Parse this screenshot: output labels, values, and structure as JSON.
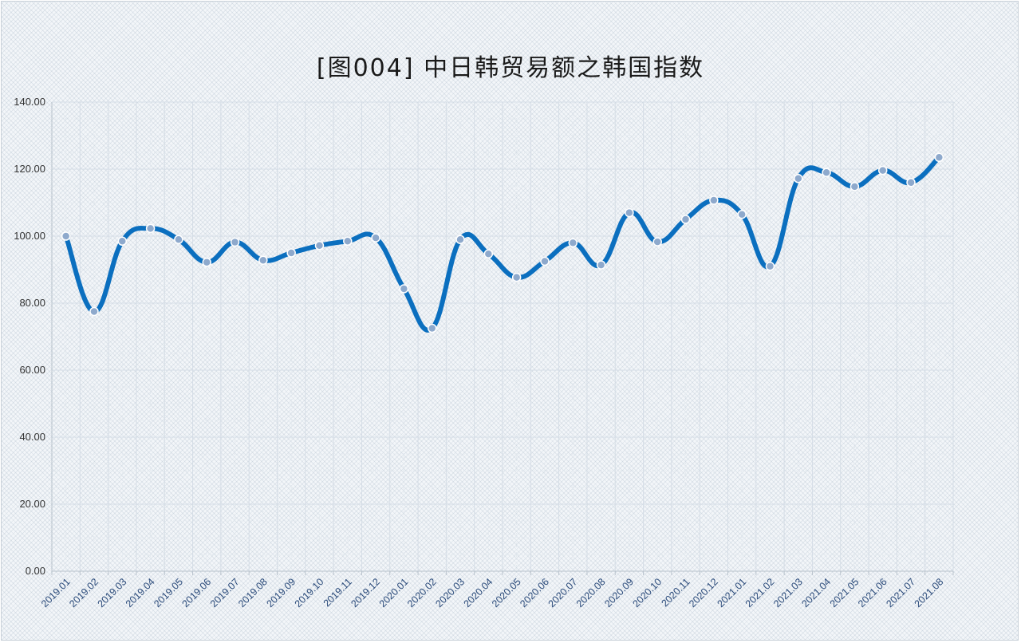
{
  "chart_data": {
    "type": "line",
    "title": "[图004] 中日韩贸易额之韩国指数",
    "xlabel": "",
    "ylabel": "",
    "ylim": [
      0,
      140
    ],
    "yticks": [
      "0.00",
      "20.00",
      "40.00",
      "60.00",
      "80.00",
      "100.00",
      "120.00",
      "140.00"
    ],
    "grid": true,
    "categories": [
      "2019.01",
      "2019.02",
      "2019.03",
      "2019.04",
      "2019.05",
      "2019.06",
      "2019.07",
      "2019.08",
      "2019.09",
      "2019.10",
      "2019.11",
      "2019.12",
      "2020.01",
      "2020.02",
      "2020.03",
      "2020.04",
      "2020.05",
      "2020.06",
      "2020.07",
      "2020.08",
      "2020.09",
      "2020.10",
      "2020.11",
      "2020.12",
      "2021.01",
      "2021.02",
      "2021.03",
      "2021.04",
      "2021.05",
      "2021.06",
      "2021.07",
      "2021.08"
    ],
    "series": [
      {
        "values": [
          100.0,
          77.5,
          98.5,
          102.3,
          99.0,
          92.2,
          98.2,
          92.8,
          95.0,
          97.2,
          98.5,
          99.5,
          84.3,
          72.5,
          99.0,
          94.7,
          87.7,
          92.5,
          98.0,
          91.4,
          107.0,
          98.3,
          105.0,
          110.7,
          106.5,
          91.0,
          117.2,
          119.0,
          114.8,
          119.6,
          116.0,
          123.5
        ],
        "color": "#0b6fbf"
      }
    ]
  }
}
